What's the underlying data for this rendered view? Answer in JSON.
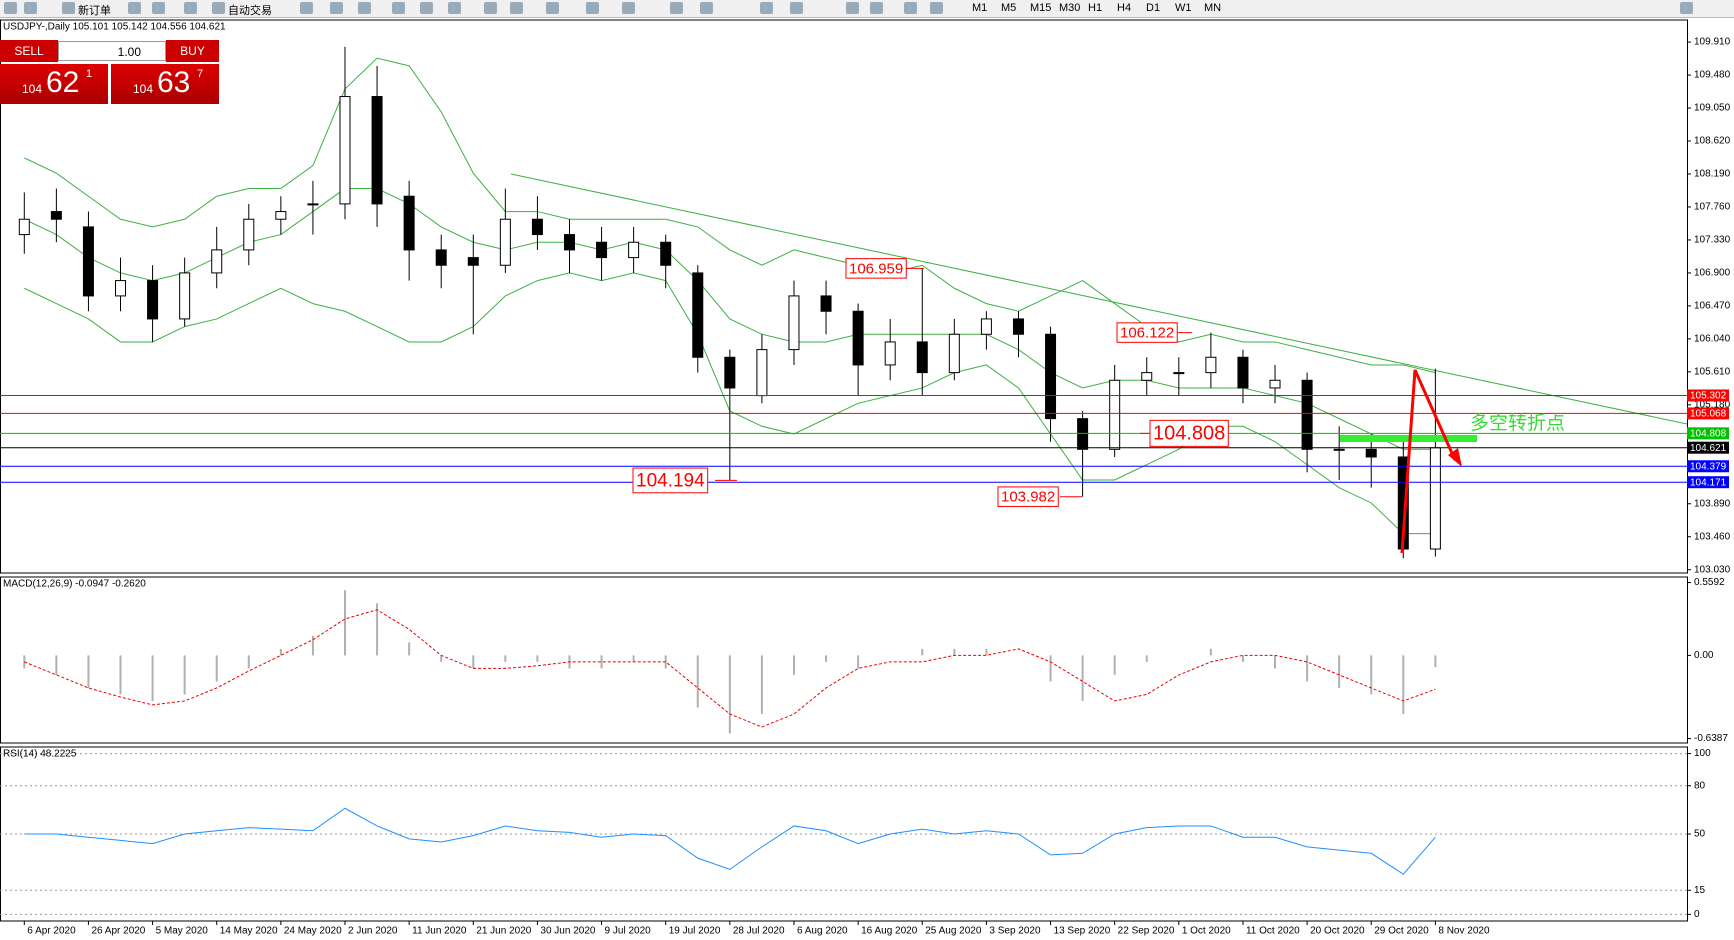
{
  "toolbar": {
    "items": [
      "新订单",
      "自动交易"
    ],
    "timeframes": [
      "M1",
      "M5",
      "M15",
      "M30",
      "H1",
      "H4",
      "D1",
      "W1",
      "MN"
    ]
  },
  "trade_panel": {
    "sell": "SELL",
    "lot": "1.00",
    "buy": "BUY",
    "bid": {
      "big": "104",
      "main": "62",
      "small": "1"
    },
    "ask": {
      "big": "104",
      "main": "63",
      "small": "7"
    }
  },
  "chart_data": [
    {
      "type": "candlestick",
      "title": "USDJPY-,Daily  105.101 105.142 104.556 104.621",
      "categories": [
        "6 Apr 2020",
        null,
        "26 Apr 2020",
        null,
        "5 May 2020",
        null,
        "14 May 2020",
        null,
        "24 May 2020",
        null,
        "2 Jun 2020",
        null,
        "11 Jun 2020",
        null,
        "21 Jun 2020",
        null,
        "30 Jun 2020",
        null,
        "9 Jul 2020",
        null,
        "19 Jul 2020",
        null,
        "28 Jul 2020",
        null,
        "6 Aug 2020",
        null,
        "16 Aug 2020",
        null,
        "25 Aug 2020",
        null,
        "3 Sep 2020",
        null,
        "13 Sep 2020",
        null,
        "22 Sep 2020",
        null,
        "1 Oct 2020",
        null,
        "11 Oct 2020",
        null,
        "20 Oct 2020",
        null,
        "29 Oct 2020",
        null,
        "8 Nov 2020"
      ],
      "open": [
        107.4,
        107.7,
        107.5,
        106.6,
        106.8,
        106.3,
        106.9,
        107.2,
        107.6,
        107.8,
        107.8,
        109.2,
        107.9,
        107.2,
        107.1,
        107.0,
        107.6,
        107.4,
        107.3,
        107.1,
        107.3,
        106.9,
        105.8,
        105.3,
        105.9,
        106.6,
        106.4,
        105.7,
        106.0,
        105.6,
        106.1,
        106.3,
        106.1,
        105.0,
        104.6,
        105.5,
        105.6,
        105.6,
        105.8,
        105.4,
        105.5,
        104.6,
        104.6,
        104.5,
        103.3
      ],
      "high": [
        107.95,
        108.0,
        107.7,
        107.1,
        107.0,
        107.1,
        107.5,
        107.8,
        107.9,
        108.1,
        109.85,
        109.6,
        108.1,
        107.4,
        107.4,
        108.0,
        107.9,
        107.6,
        107.5,
        107.5,
        107.4,
        107.0,
        105.9,
        106.1,
        106.8,
        106.8,
        106.5,
        106.3,
        106.959,
        106.3,
        106.4,
        106.4,
        106.2,
        105.1,
        105.7,
        105.8,
        105.8,
        106.122,
        105.9,
        105.7,
        105.6,
        104.9,
        104.8,
        104.7,
        105.65
      ],
      "low": [
        107.15,
        107.3,
        106.4,
        106.4,
        106.0,
        106.2,
        106.7,
        107.0,
        107.4,
        107.4,
        107.6,
        107.5,
        106.8,
        106.7,
        106.1,
        106.9,
        107.2,
        106.9,
        106.8,
        106.9,
        106.7,
        105.6,
        104.194,
        105.2,
        105.7,
        106.1,
        105.3,
        105.5,
        105.3,
        105.5,
        105.9,
        105.8,
        104.7,
        103.982,
        104.5,
        105.3,
        105.3,
        105.4,
        105.2,
        105.2,
        104.3,
        104.2,
        104.1,
        103.18,
        103.2
      ],
      "close": [
        107.6,
        107.6,
        106.6,
        106.8,
        106.3,
        106.9,
        107.2,
        107.6,
        107.7,
        107.8,
        109.2,
        107.8,
        107.2,
        107.0,
        107.0,
        107.6,
        107.4,
        107.2,
        107.1,
        107.3,
        107.0,
        105.8,
        105.4,
        105.9,
        106.6,
        106.4,
        105.7,
        106.0,
        105.6,
        106.1,
        106.3,
        106.1,
        105.0,
        104.6,
        105.5,
        105.6,
        105.6,
        105.8,
        105.4,
        105.5,
        104.6,
        104.6,
        104.5,
        103.3,
        104.62
      ],
      "bands": {
        "color": "#3cb043",
        "upper": [
          108.4,
          108.2,
          107.9,
          107.6,
          107.5,
          107.6,
          107.9,
          108.0,
          108.0,
          108.3,
          109.3,
          109.7,
          109.6,
          109.0,
          108.2,
          107.7,
          107.7,
          107.6,
          107.6,
          107.6,
          107.6,
          107.5,
          107.2,
          107.0,
          107.2,
          107.1,
          107.0,
          106.9,
          107.0,
          106.7,
          106.5,
          106.4,
          106.6,
          106.8,
          106.5,
          106.2,
          106.0,
          106.1,
          106.0,
          106.0,
          105.9,
          105.8,
          105.7,
          105.7,
          105.6
        ],
        "middle": [
          107.6,
          107.4,
          107.1,
          106.9,
          106.8,
          106.9,
          107.1,
          107.3,
          107.4,
          107.7,
          108.0,
          108.0,
          107.8,
          107.5,
          107.3,
          107.2,
          107.3,
          107.3,
          107.2,
          107.3,
          107.2,
          106.8,
          106.3,
          106.1,
          106.0,
          106.0,
          106.1,
          106.1,
          106.1,
          106.1,
          106.1,
          105.9,
          105.6,
          105.4,
          105.5,
          105.5,
          105.4,
          105.4,
          105.4,
          105.3,
          105.2,
          105.0,
          104.8,
          104.6,
          104.6
        ],
        "lower": [
          106.7,
          106.5,
          106.3,
          106.0,
          106.0,
          106.2,
          106.3,
          106.5,
          106.7,
          106.5,
          106.4,
          106.2,
          106.0,
          106.0,
          106.2,
          106.6,
          106.8,
          106.9,
          106.8,
          106.9,
          106.8,
          106.1,
          105.1,
          104.9,
          104.8,
          105.0,
          105.2,
          105.3,
          105.4,
          105.6,
          105.7,
          105.4,
          104.8,
          104.2,
          104.2,
          104.4,
          104.6,
          104.9,
          104.9,
          104.7,
          104.4,
          104.1,
          103.9,
          103.5,
          103.5
        ]
      },
      "ylim": [
        102.987,
        110.198
      ],
      "yticks": [
        {
          "value": 109.91,
          "label": "109.910"
        },
        {
          "value": 109.48,
          "label": "109.480"
        },
        {
          "value": 109.05,
          "label": "109.050"
        },
        {
          "value": 108.62,
          "label": "108.620"
        },
        {
          "value": 108.19,
          "label": "108.190"
        },
        {
          "value": 107.76,
          "label": "107.760"
        },
        {
          "value": 107.33,
          "label": "107.330"
        },
        {
          "value": 106.9,
          "label": "106.900"
        },
        {
          "value": 106.47,
          "label": "106.470"
        },
        {
          "value": 106.04,
          "label": "106.040"
        },
        {
          "value": 105.61,
          "label": "105.610"
        },
        {
          "value": 105.18,
          "label": "105.180"
        },
        {
          "value": 103.89,
          "label": "103.890"
        },
        {
          "value": 103.46,
          "label": "103.460"
        },
        {
          "value": 103.03,
          "label": "103.030"
        }
      ],
      "price_lines": [
        {
          "value": 105.302,
          "color": "#ff0000"
        },
        {
          "value": 105.068,
          "color": "#ff0000"
        },
        {
          "value": 104.808,
          "color": "#00c000"
        },
        {
          "value": 104.621,
          "color": "#000000"
        },
        {
          "value": 104.379,
          "color": "#0000ff"
        },
        {
          "value": 104.171,
          "color": "#0000ff"
        }
      ],
      "annotations": [
        106.959,
        106.122,
        104.808,
        104.194,
        103.982
      ],
      "note": "多空转折点"
    },
    {
      "type": "macd",
      "title": "MACD(12,26,9) -0.0947 -0.2620",
      "histogram": [
        -0.1,
        -0.15,
        -0.25,
        -0.3,
        -0.35,
        -0.3,
        -0.2,
        -0.1,
        0.05,
        0.15,
        0.5,
        0.4,
        0.1,
        -0.05,
        -0.1,
        -0.05,
        -0.05,
        -0.1,
        -0.1,
        -0.05,
        -0.1,
        -0.4,
        -0.6,
        -0.45,
        -0.15,
        -0.05,
        -0.1,
        0.0,
        0.05,
        0.05,
        0.05,
        0.0,
        -0.2,
        -0.35,
        -0.15,
        -0.05,
        0.0,
        0.05,
        -0.05,
        -0.1,
        -0.2,
        -0.25,
        -0.3,
        -0.45,
        -0.09
      ],
      "signal": [
        -0.05,
        -0.15,
        -0.25,
        -0.32,
        -0.38,
        -0.35,
        -0.25,
        -0.12,
        0.0,
        0.12,
        0.28,
        0.35,
        0.2,
        0.0,
        -0.1,
        -0.1,
        -0.08,
        -0.05,
        -0.05,
        -0.05,
        -0.05,
        -0.25,
        -0.45,
        -0.55,
        -0.45,
        -0.25,
        -0.1,
        -0.05,
        -0.05,
        0.0,
        0.0,
        0.05,
        -0.05,
        -0.2,
        -0.35,
        -0.3,
        -0.15,
        -0.05,
        0.0,
        0.0,
        -0.05,
        -0.15,
        -0.25,
        -0.35,
        -0.26
      ],
      "ylim": [
        -0.6727,
        0.6017
      ],
      "yticks": [
        0.5592,
        {
          "value": 0,
          "label": "0.00"
        },
        -0.6387
      ]
    },
    {
      "type": "line",
      "title": "RSI(14) 48.2225",
      "color": "#1e90ff",
      "grid": true,
      "values": [
        50,
        50,
        48,
        46,
        44,
        50,
        52,
        54,
        53,
        52,
        66,
        55,
        47,
        45,
        49,
        55,
        52,
        51,
        48,
        50,
        49,
        35,
        28,
        42,
        55,
        52,
        44,
        50,
        53,
        50,
        52,
        50,
        37,
        38,
        50,
        54,
        55,
        55,
        48,
        48,
        42,
        40,
        38,
        25,
        48
      ],
      "ylim": [
        -4.1,
        104.1
      ],
      "yticks": [
        100,
        80,
        50,
        15,
        0
      ]
    }
  ]
}
